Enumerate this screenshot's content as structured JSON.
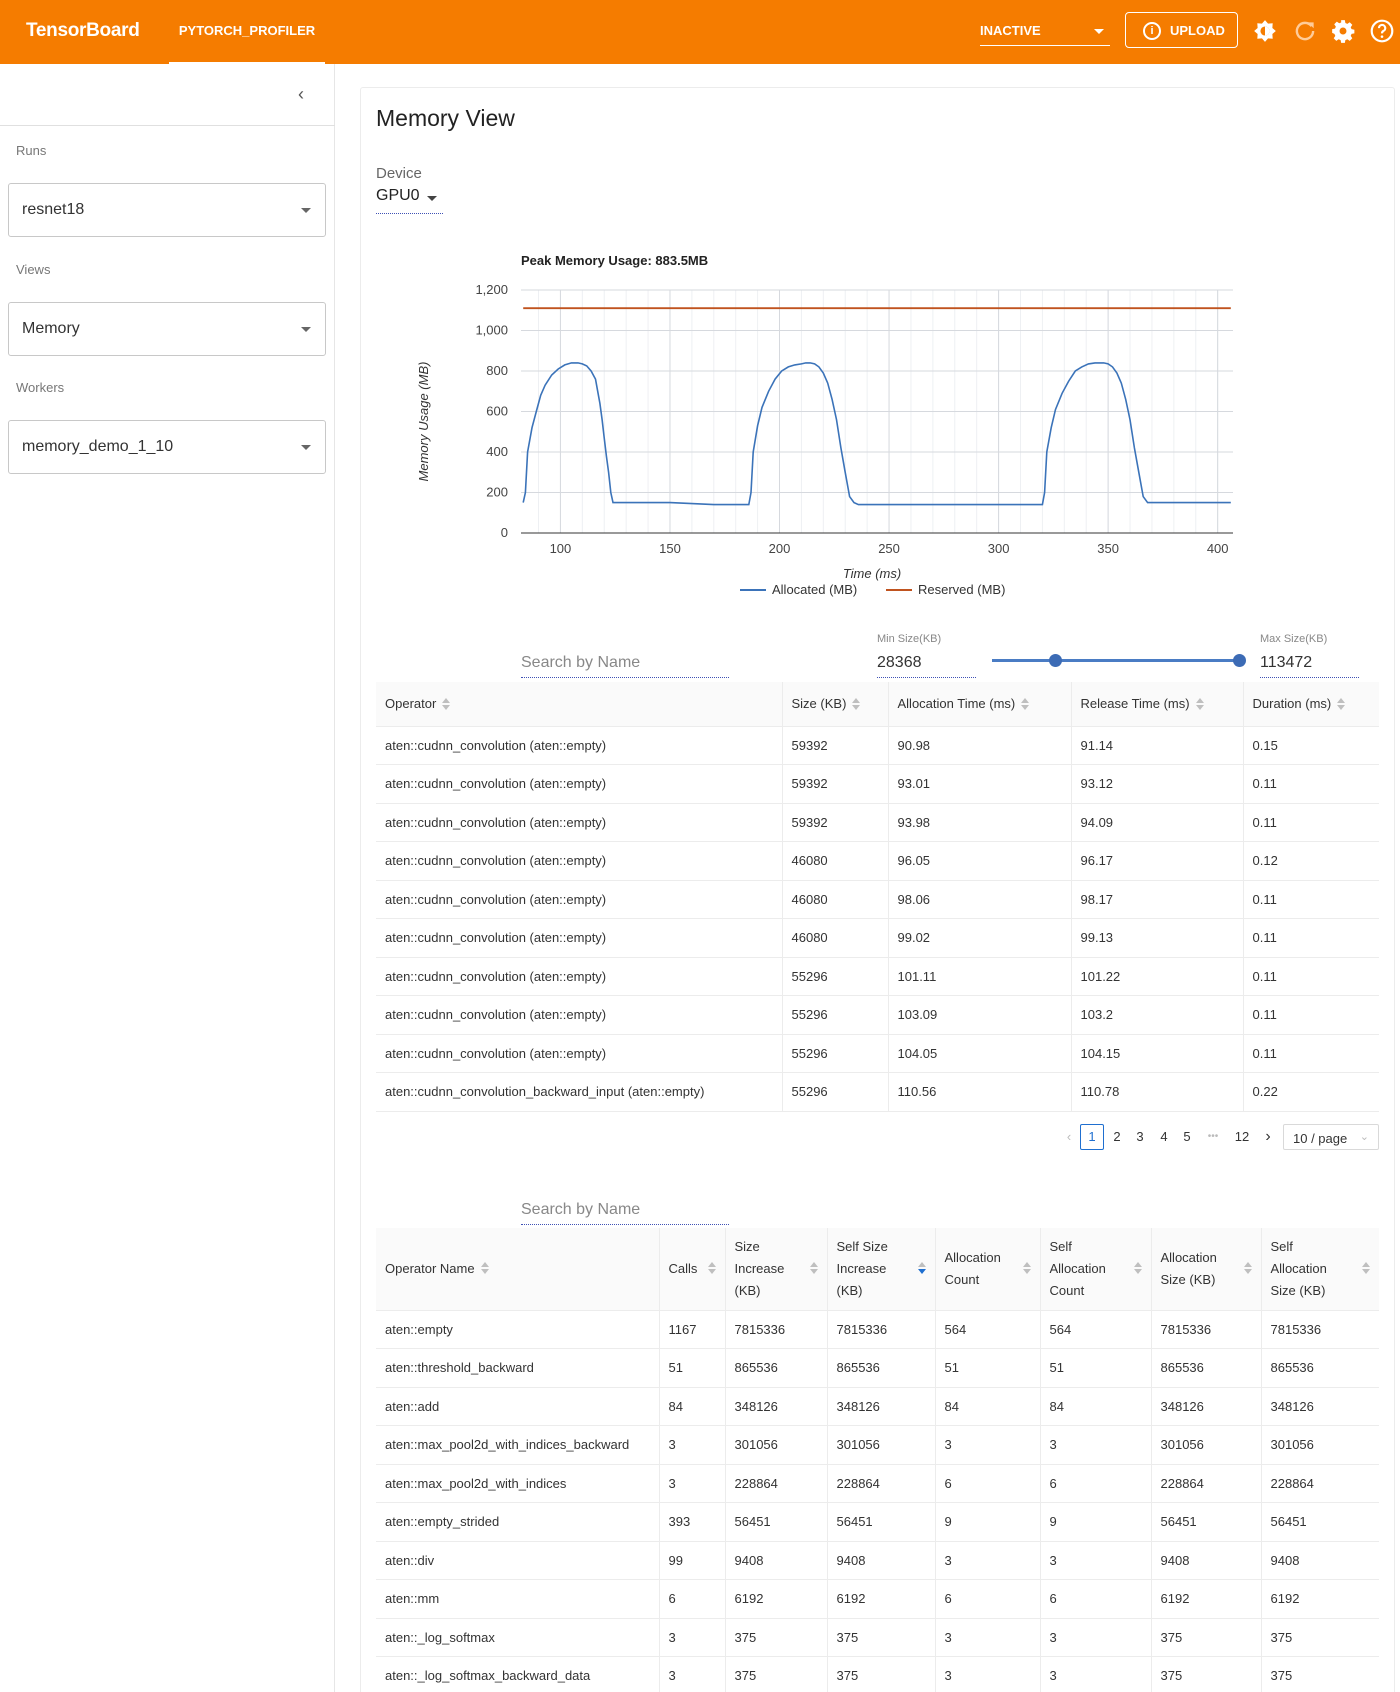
{
  "toolbar": {
    "brand": "TensorBoard",
    "plugin_tab": "PYTORCH_PROFILER",
    "status_select": "INACTIVE",
    "upload_label": "UPLOAD",
    "upload_info_glyph": "i",
    "icons": [
      "brightness-icon",
      "reload-icon",
      "settings-icon",
      "help-icon"
    ]
  },
  "sidebar": {
    "collapse_glyph": "‹",
    "runs_label": "Runs",
    "runs_value": "resnet18",
    "views_label": "Views",
    "views_value": "Memory",
    "workers_label": "Workers",
    "workers_value": "memory_demo_1_10"
  },
  "main": {
    "title": "Memory View",
    "device_label": "Device",
    "device_value": "GPU0"
  },
  "chart_data": {
    "type": "line",
    "title": "Peak Memory Usage: 883.5MB",
    "xlabel": "Time (ms)",
    "ylabel": "Memory Usage (MB)",
    "xlim": [
      82,
      407
    ],
    "ylim": [
      0,
      1200
    ],
    "x_ticks": [
      100,
      150,
      200,
      250,
      300,
      350,
      400
    ],
    "x_tick_labels": [
      "100",
      "150",
      "200",
      "250",
      "300",
      "350",
      "400"
    ],
    "y_ticks": [
      0,
      200,
      400,
      600,
      800,
      1000,
      1200
    ],
    "y_tick_labels": [
      "0",
      "200",
      "400",
      "600",
      "800",
      "1,000",
      "1,200"
    ],
    "grid": true,
    "legend_position": "bottom",
    "series": [
      {
        "name": "Allocated (MB)",
        "color": "#3b73b9",
        "x": [
          83,
          84,
          85,
          87,
          89,
          91,
          93,
          96,
          99,
          102,
          105,
          108,
          110,
          112,
          114,
          116,
          117,
          118,
          119,
          120,
          121,
          122,
          123,
          124,
          125,
          126,
          127,
          128,
          150,
          170,
          186,
          187,
          188,
          190,
          192,
          195,
          198,
          201,
          204,
          207,
          210,
          212,
          214,
          216,
          218,
          220,
          222,
          224,
          226,
          228,
          230,
          232,
          234,
          236,
          237,
          238,
          239,
          240,
          250,
          270,
          300,
          320,
          321,
          322,
          324,
          326,
          329,
          332,
          335,
          338,
          341,
          344,
          346,
          348,
          350,
          352,
          354,
          356,
          358,
          360,
          362,
          364,
          366,
          368,
          369,
          370,
          371,
          372,
          373,
          380,
          395,
          406
        ],
        "values": [
          150,
          200,
          400,
          520,
          600,
          680,
          730,
          780,
          810,
          830,
          840,
          840,
          835,
          825,
          800,
          760,
          700,
          640,
          560,
          470,
          380,
          300,
          200,
          150,
          150,
          150,
          150,
          150,
          150,
          140,
          140,
          200,
          400,
          530,
          620,
          700,
          760,
          800,
          820,
          830,
          835,
          840,
          840,
          835,
          820,
          790,
          740,
          660,
          560,
          420,
          300,
          180,
          150,
          140,
          140,
          140,
          140,
          140,
          140,
          140,
          140,
          140,
          200,
          400,
          520,
          610,
          690,
          750,
          800,
          820,
          835,
          840,
          840,
          840,
          835,
          820,
          790,
          740,
          660,
          560,
          420,
          300,
          180,
          150,
          150,
          150,
          150,
          150,
          150,
          150,
          150,
          150
        ]
      },
      {
        "name": "Reserved (MB)",
        "color": "#c0531f",
        "x": [
          83,
          406
        ],
        "values": [
          1110,
          1110
        ]
      }
    ]
  },
  "filters": {
    "search_placeholder": "Search by Name",
    "min_size_label": "Min Size(KB)",
    "min_size_value": "28368",
    "max_size_label": "Max Size(KB)",
    "max_size_value": "113472",
    "slider_range_fraction": [
      0.256,
      1.0
    ]
  },
  "memory_table": {
    "columns": [
      "Operator",
      "Size (KB)",
      "Allocation Time (ms)",
      "Release Time (ms)",
      "Duration (ms)"
    ],
    "rows": [
      [
        "aten::cudnn_convolution (aten::empty)",
        "59392",
        "90.98",
        "91.14",
        "0.15"
      ],
      [
        "aten::cudnn_convolution (aten::empty)",
        "59392",
        "93.01",
        "93.12",
        "0.11"
      ],
      [
        "aten::cudnn_convolution (aten::empty)",
        "59392",
        "93.98",
        "94.09",
        "0.11"
      ],
      [
        "aten::cudnn_convolution (aten::empty)",
        "46080",
        "96.05",
        "96.17",
        "0.12"
      ],
      [
        "aten::cudnn_convolution (aten::empty)",
        "46080",
        "98.06",
        "98.17",
        "0.11"
      ],
      [
        "aten::cudnn_convolution (aten::empty)",
        "46080",
        "99.02",
        "99.13",
        "0.11"
      ],
      [
        "aten::cudnn_convolution (aten::empty)",
        "55296",
        "101.11",
        "101.22",
        "0.11"
      ],
      [
        "aten::cudnn_convolution (aten::empty)",
        "55296",
        "103.09",
        "103.2",
        "0.11"
      ],
      [
        "aten::cudnn_convolution (aten::empty)",
        "55296",
        "104.05",
        "104.15",
        "0.11"
      ],
      [
        "aten::cudnn_convolution_backward_input (aten::empty)",
        "55296",
        "110.56",
        "110.78",
        "0.22"
      ]
    ]
  },
  "pagination": {
    "prev_glyph": "‹",
    "pages": [
      "1",
      "2",
      "3",
      "4",
      "5",
      "•••",
      "12"
    ],
    "active_page": "1",
    "next_glyph": "›",
    "page_size": "10 / page"
  },
  "operator_search_placeholder": "Search by Name",
  "operator_table": {
    "columns": [
      "Operator Name",
      "Calls",
      "Size Increase (KB)",
      "Self Size Increase (KB)",
      "Allocation Count",
      "Self Allocation Count",
      "Allocation Size (KB)",
      "Self Allocation Size (KB)"
    ],
    "sorted_column": "Self Size Increase (KB)",
    "rows": [
      [
        "aten::empty",
        "1167",
        "7815336",
        "7815336",
        "564",
        "564",
        "7815336",
        "7815336"
      ],
      [
        "aten::threshold_backward",
        "51",
        "865536",
        "865536",
        "51",
        "51",
        "865536",
        "865536"
      ],
      [
        "aten::add",
        "84",
        "348126",
        "348126",
        "84",
        "84",
        "348126",
        "348126"
      ],
      [
        "aten::max_pool2d_with_indices_backward",
        "3",
        "301056",
        "301056",
        "3",
        "3",
        "301056",
        "301056"
      ],
      [
        "aten::max_pool2d_with_indices",
        "3",
        "228864",
        "228864",
        "6",
        "6",
        "228864",
        "228864"
      ],
      [
        "aten::empty_strided",
        "393",
        "56451",
        "56451",
        "9",
        "9",
        "56451",
        "56451"
      ],
      [
        "aten::div",
        "99",
        "9408",
        "9408",
        "3",
        "3",
        "9408",
        "9408"
      ],
      [
        "aten::mm",
        "6",
        "6192",
        "6192",
        "6",
        "6",
        "6192",
        "6192"
      ],
      [
        "aten::_log_softmax",
        "3",
        "375",
        "375",
        "3",
        "3",
        "375",
        "375"
      ],
      [
        "aten::_log_softmax_backward_data",
        "3",
        "375",
        "375",
        "3",
        "3",
        "375",
        "375"
      ]
    ]
  }
}
